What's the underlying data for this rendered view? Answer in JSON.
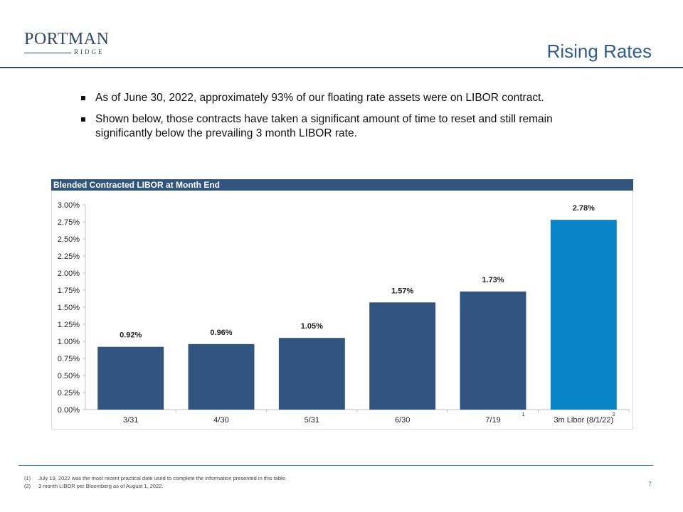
{
  "logo": {
    "main": "PORTMAN",
    "sub": "RIDGE"
  },
  "title": "Rising Rates",
  "bullets": [
    "As of June 30, 2022, approximately 93% of our floating rate assets were on LIBOR contract.",
    "Shown below, those contracts have taken a significant amount of time to reset and still remain significantly below the prevailing 3 month LIBOR rate."
  ],
  "chart_header": "Blended Contracted LIBOR at Month End",
  "chart_data": {
    "type": "bar",
    "title": "Blended Contracted LIBOR at Month End",
    "categories": [
      "3/31",
      "4/30",
      "5/31",
      "6/30",
      "7/19",
      "3m Libor (8/1/22)"
    ],
    "category_footnotes": [
      "",
      "",
      "",
      "",
      "1",
      "2"
    ],
    "values": [
      0.92,
      0.96,
      1.05,
      1.57,
      1.73,
      2.78
    ],
    "data_labels": [
      "0.92%",
      "0.96%",
      "1.05%",
      "1.57%",
      "1.73%",
      "2.78%"
    ],
    "y_ticks": [
      "0.00%",
      "0.25%",
      "0.50%",
      "0.75%",
      "1.00%",
      "1.25%",
      "1.50%",
      "1.75%",
      "2.00%",
      "2.25%",
      "2.50%",
      "2.75%",
      "3.00%"
    ],
    "ylim": [
      0,
      3.0
    ],
    "bar_colors": [
      "#32557f",
      "#32557f",
      "#32557f",
      "#32557f",
      "#32557f",
      "#0a84c8"
    ],
    "grid": false
  },
  "footnotes": [
    {
      "num": "(1)",
      "text": "July 19, 2022 was the most recent practical date used to complete the information presented in this table."
    },
    {
      "num": "(2)",
      "text": "3 month LIBOR per Bloomberg as of August 1, 2022."
    }
  ],
  "page_number": "7"
}
